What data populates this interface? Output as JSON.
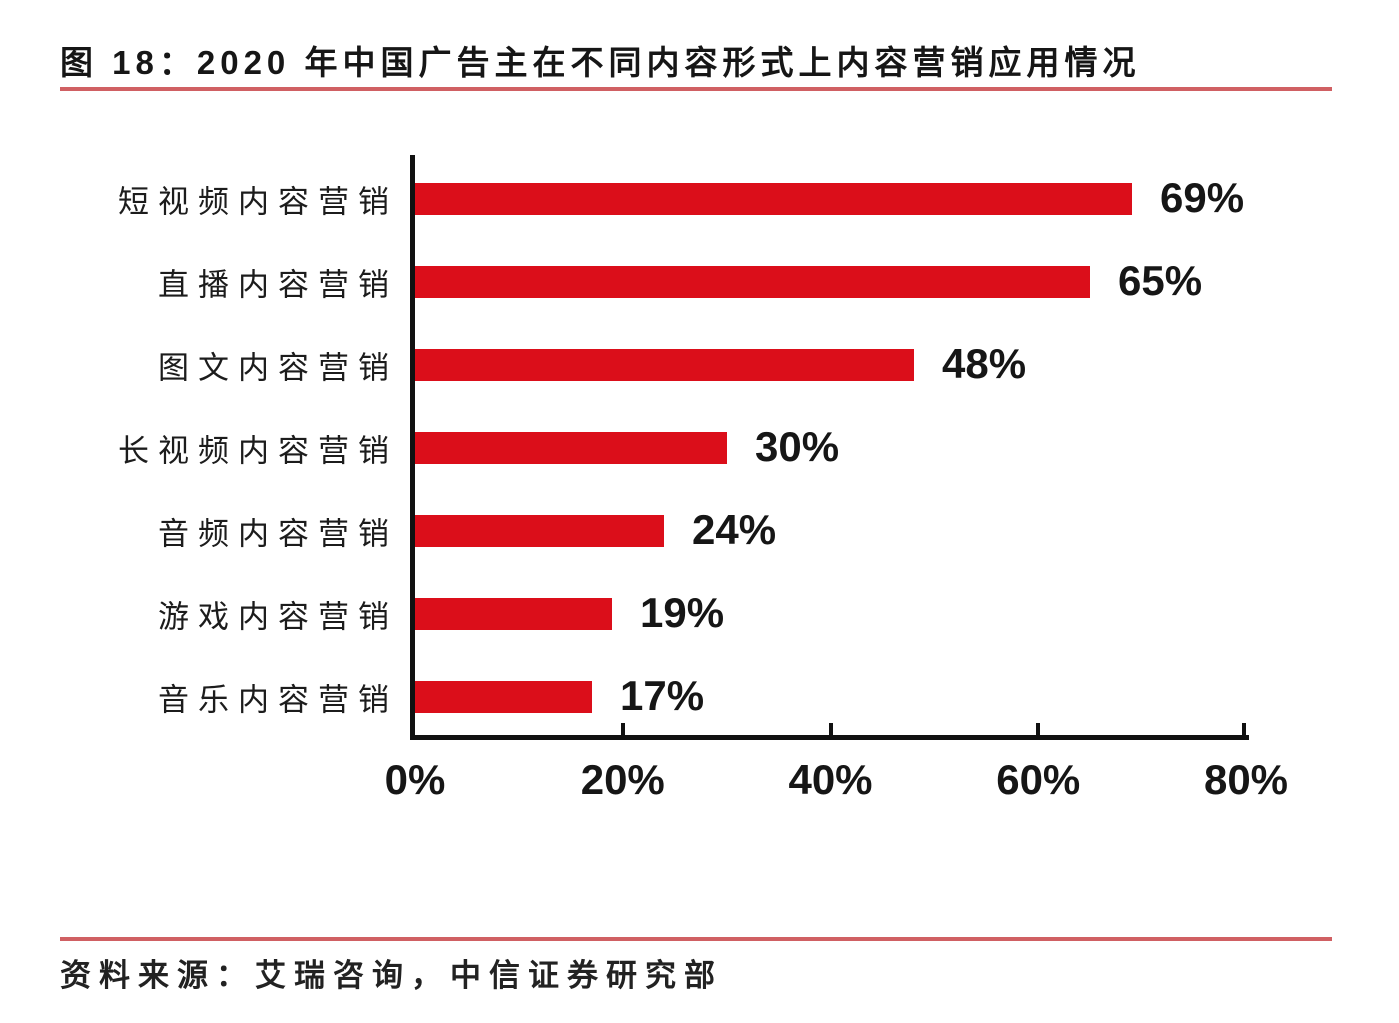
{
  "page": {
    "title": "图 18：2020 年中国广告主在不同内容形式上内容营销应用情况",
    "source": "资料来源：艾瑞咨询，中信证券研究部"
  },
  "colors": {
    "bar": "#db0e1a",
    "rule": "#d06063",
    "axis": "#111111",
    "text": "#161616"
  },
  "chart_data": {
    "type": "bar",
    "orientation": "horizontal",
    "title": "图 18：2020 年中国广告主在不同内容形式上内容营销应用情况",
    "categories": [
      "短视频内容营销",
      "直播内容营销",
      "图文内容营销",
      "长视频内容营销",
      "音频内容营销",
      "游戏内容营销",
      "音乐内容营销"
    ],
    "values": [
      69,
      65,
      48,
      30,
      24,
      19,
      17
    ],
    "value_labels": [
      "69%",
      "65%",
      "48%",
      "30%",
      "24%",
      "19%",
      "17%"
    ],
    "xlabel": "",
    "ylabel": "",
    "xlim": [
      0,
      80
    ],
    "x_ticks": [
      0,
      20,
      40,
      60,
      80
    ],
    "x_tick_labels": [
      "0%",
      "20%",
      "40%",
      "60%",
      "80%"
    ],
    "grid": false,
    "legend": false,
    "bar_color": "#db0e1a",
    "data_labels": "outside-end",
    "source": "资料来源：艾瑞咨询，中信证券研究部"
  }
}
